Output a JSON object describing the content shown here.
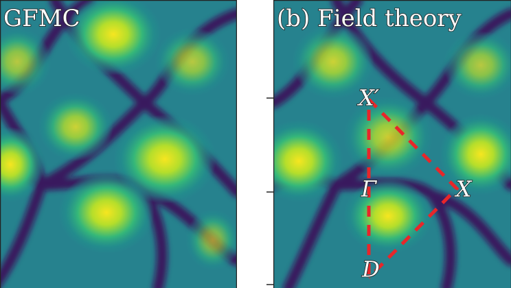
{
  "panels": [
    {
      "label": "GFMC"
    },
    {
      "label": "(b) Field theory",
      "points": [
        "X′",
        "X",
        "Γ",
        "D"
      ]
    }
  ]
}
